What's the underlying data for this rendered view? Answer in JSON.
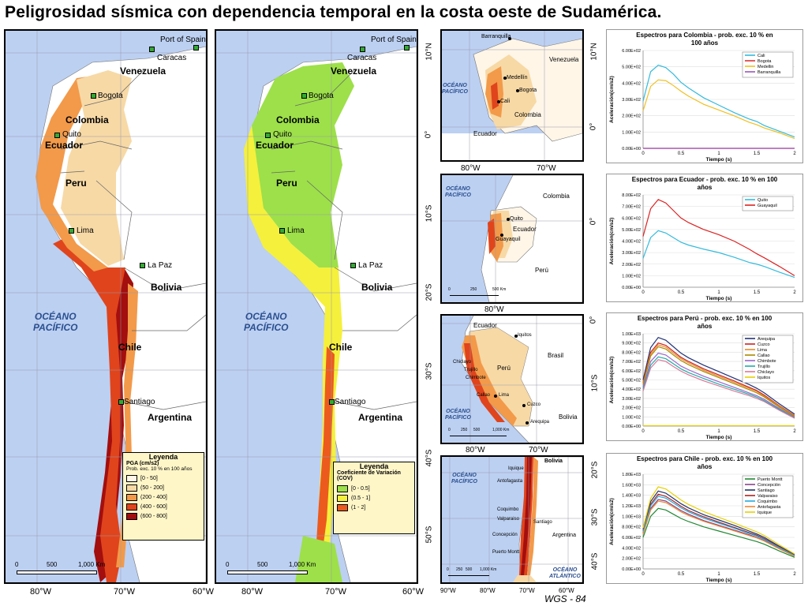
{
  "title": "Peligrosidad sísmica con dependencia temporal en la costa oeste de Sudamérica.",
  "footer": "WGS - 84",
  "map1": {
    "countries": [
      "Venezuela",
      "Colombia",
      "Ecuador",
      "Peru",
      "Bolivia",
      "Chile",
      "Argentina"
    ],
    "cities": [
      "Port of Spain",
      "Caracas",
      "Bogota",
      "Quito",
      "Lima",
      "La Paz",
      "Santiago"
    ],
    "ocean": [
      "OCÉANO",
      "PACÍFICO"
    ],
    "lat_labels": [
      "10°N",
      "0°",
      "10°S",
      "20°S",
      "30°S",
      "40°S",
      "50°S"
    ],
    "lon_labels": [
      "80°W",
      "70°W",
      "60°W"
    ],
    "scale": [
      "0",
      "500",
      "1,000 Km"
    ],
    "legend": {
      "title": "Leyenda",
      "subtitle": "PGA (cm/s2)",
      "note": "Prob. exc. 10 % en 100 años",
      "items": [
        {
          "label": "[0 - 50]",
          "color": "#fff6e8"
        },
        {
          "label": "(50 - 200]",
          "color": "#f7d9a6"
        },
        {
          "label": "(200 - 400]",
          "color": "#f29a4a"
        },
        {
          "label": "(400 - 600]",
          "color": "#e0441c"
        },
        {
          "label": "(600 - 800]",
          "color": "#a30e0e"
        }
      ]
    }
  },
  "map2": {
    "countries": [
      "Venezuela",
      "Colombia",
      "Ecuador",
      "Peru",
      "Bolivia",
      "Chile",
      "Argentina"
    ],
    "cities": [
      "Port of Spain",
      "Caracas",
      "Bogota",
      "Quito",
      "Lima",
      "La Paz",
      "Santiago"
    ],
    "ocean": [
      "OCÉANO",
      "PACÍFICO"
    ],
    "lat_labels": [
      "10°N",
      "0°",
      "10°S",
      "20°S",
      "30°S",
      "40°S",
      "50°S"
    ],
    "lon_labels": [
      "80°W",
      "70°W",
      "60°W"
    ],
    "scale": [
      "0",
      "500",
      "1,000 Km"
    ],
    "legend": {
      "title": "Leyenda",
      "subtitle": "Coeficiente de Variación (COV)",
      "items": [
        {
          "label": "[0 - 0.5]",
          "color": "#9de04a"
        },
        {
          "label": "(0.5 - 1]",
          "color": "#f5f03c"
        },
        {
          "label": "(1 - 2]",
          "color": "#ec5a1e"
        }
      ]
    }
  },
  "insets": [
    {
      "id": "colombia",
      "labels": [
        "Barranquilla",
        "Venezuela",
        "Medellín",
        "Bogota",
        "Cali",
        "Colombia",
        "Ecuador"
      ],
      "ocean": [
        "OCÉANO",
        "PACÍFICO"
      ],
      "lat_labels": [
        "10°N",
        "0°"
      ],
      "lon_labels": [
        "80°W",
        "70°W"
      ],
      "scale": [
        "0",
        "250",
        "500 Km"
      ]
    },
    {
      "id": "ecuador",
      "labels": [
        "Colombia",
        "Quito",
        "Ecuador",
        "Guayaquil",
        "Perú"
      ],
      "ocean": [
        "OCÉANO",
        "PACÍFICO"
      ],
      "lat_labels": [
        "0°"
      ],
      "lon_labels": [
        "80°W"
      ],
      "scale": [
        "0",
        "250",
        "500 Km"
      ]
    },
    {
      "id": "peru",
      "labels": [
        "Ecuador",
        "Iquitos",
        "Brasil",
        "Chiclayo",
        "Trujillo",
        "Chimbote",
        "Perú",
        "Callao",
        "Lima",
        "Cuzco",
        "Arequipa",
        "Bolivia"
      ],
      "ocean": [
        "OCÉANO",
        "PACÍFICO"
      ],
      "lat_labels": [
        "0°",
        "10°S"
      ],
      "lon_labels": [
        "80°W",
        "70°W"
      ],
      "scale": [
        "0",
        "250",
        "500",
        "1,000 Km"
      ]
    },
    {
      "id": "chile",
      "labels": [
        "Bolivia",
        "Iquique",
        "Antofagasta",
        "Coquimbo",
        "Valparaiso",
        "Santiago",
        "Concepción",
        "Puerto Montt",
        "Argentina"
      ],
      "ocean": [
        "OCÉANO",
        "PACÍFICO"
      ],
      "ocean2": [
        "OCÉANO",
        "ATLÁNTICO"
      ],
      "lat_labels": [
        "20°S",
        "30°S",
        "40°S"
      ],
      "lon_labels": [
        "90°W",
        "80°W",
        "70°W",
        "60°W"
      ],
      "scale": [
        "0",
        "250",
        "500",
        "1,000 Km"
      ]
    }
  ],
  "chart_data": [
    {
      "type": "line",
      "title": "Espectros  para Colombia - prob. exc. 10 % en 100 años",
      "xlabel": "Tiempo (s)",
      "ylabel": "Aceleración(cm/s2)",
      "xlim": [
        0,
        2
      ],
      "ylim": [
        0,
        600
      ],
      "xticks": [
        "0",
        "0.5",
        "1",
        "1.5",
        "2"
      ],
      "yticks": [
        "0.00E+00",
        "1.00E+02",
        "2.00E+02",
        "3.00E+02",
        "4.00E+02",
        "5.00E+02",
        "6.00E+02"
      ],
      "legend_position": "top-right",
      "x": [
        0,
        0.1,
        0.2,
        0.3,
        0.4,
        0.5,
        0.6,
        0.8,
        1.0,
        1.2,
        1.4,
        1.5,
        1.6,
        1.8,
        2.0
      ],
      "series": [
        {
          "name": "Cali",
          "color": "#33bbdd",
          "values": [
            290,
            470,
            510,
            495,
            455,
            405,
            370,
            310,
            265,
            220,
            180,
            165,
            140,
            105,
            70
          ]
        },
        {
          "name": "Bogota",
          "color": "#dd3333",
          "values": [
            0,
            0,
            0,
            0,
            0,
            0,
            0,
            0,
            0,
            0,
            0,
            0,
            0,
            0,
            0
          ]
        },
        {
          "name": "Medellin",
          "color": "#f0c020",
          "values": [
            230,
            380,
            420,
            415,
            385,
            350,
            320,
            270,
            235,
            200,
            160,
            145,
            125,
            95,
            60
          ]
        },
        {
          "name": "Barranquilla",
          "color": "#9955bb",
          "values": [
            0,
            0,
            0,
            0,
            0,
            0,
            0,
            0,
            0,
            0,
            0,
            0,
            0,
            0,
            0
          ]
        }
      ]
    },
    {
      "type": "line",
      "title": "Espectros  para Ecuador - prob. exc. 10 % en 100 años",
      "xlabel": "Tiempo (s)",
      "ylabel": "Aceleración(cm/s2)",
      "xlim": [
        0,
        2
      ],
      "ylim": [
        0,
        800
      ],
      "xticks": [
        "0",
        "0.5",
        "1",
        "1.5",
        "2"
      ],
      "yticks": [
        "0.00E+00",
        "1.00E+02",
        "2.00E+02",
        "3.00E+02",
        "4.00E+02",
        "5.00E+02",
        "6.00E+02",
        "7.00E+02",
        "8.00E+02"
      ],
      "legend_position": "top-right",
      "x": [
        0,
        0.1,
        0.2,
        0.3,
        0.4,
        0.5,
        0.6,
        0.8,
        1.0,
        1.2,
        1.4,
        1.5,
        1.6,
        1.8,
        2.0
      ],
      "series": [
        {
          "name": "Quito",
          "color": "#33bbdd",
          "values": [
            250,
            430,
            490,
            470,
            430,
            390,
            365,
            330,
            300,
            260,
            215,
            200,
            180,
            130,
            85
          ]
        },
        {
          "name": "Guayaquil",
          "color": "#dd2222",
          "values": [
            440,
            680,
            760,
            730,
            665,
            600,
            560,
            500,
            455,
            400,
            330,
            290,
            255,
            180,
            100
          ]
        }
      ]
    },
    {
      "type": "line",
      "title": "Espectros  para Perú - prob. exc. 10 % en 100 años",
      "xlabel": "Tiempo (s)",
      "ylabel": "Aceleración(cm/s2)",
      "xlim": [
        0,
        2
      ],
      "ylim": [
        0,
        1000
      ],
      "xticks": [
        "0",
        "0.5",
        "1",
        "1.5",
        "2"
      ],
      "yticks": [
        "0.00E+00",
        "1.00E+02",
        "2.00E+02",
        "3.00E+02",
        "4.00E+02",
        "5.00E+02",
        "6.00E+02",
        "7.00E+02",
        "8.00E+02",
        "9.00E+02",
        "1.00E+03"
      ],
      "legend_position": "top-right",
      "x": [
        0,
        0.1,
        0.2,
        0.3,
        0.4,
        0.5,
        0.6,
        0.8,
        1.0,
        1.2,
        1.4,
        1.5,
        1.6,
        1.8,
        2.0
      ],
      "series": [
        {
          "name": "Arequipa",
          "color": "#223377",
          "values": [
            500,
            850,
            960,
            930,
            860,
            790,
            740,
            660,
            590,
            520,
            450,
            410,
            360,
            240,
            130
          ]
        },
        {
          "name": "Cuzco",
          "color": "#cc2222",
          "values": [
            470,
            800,
            900,
            875,
            810,
            745,
            700,
            620,
            555,
            490,
            420,
            385,
            335,
            220,
            115
          ]
        },
        {
          "name": "Lima",
          "color": "#e88a2a",
          "values": [
            460,
            780,
            880,
            855,
            790,
            730,
            685,
            605,
            540,
            475,
            410,
            375,
            325,
            215,
            110
          ]
        },
        {
          "name": "Callao",
          "color": "#aa8800",
          "values": [
            450,
            760,
            860,
            835,
            770,
            710,
            665,
            590,
            525,
            460,
            395,
            360,
            315,
            205,
            105
          ]
        },
        {
          "name": "Chimbote",
          "color": "#9966cc",
          "values": [
            420,
            700,
            790,
            770,
            710,
            650,
            610,
            540,
            480,
            420,
            360,
            330,
            290,
            190,
            95
          ]
        },
        {
          "name": "Trujillo",
          "color": "#22aaaa",
          "values": [
            400,
            660,
            750,
            730,
            675,
            620,
            580,
            515,
            455,
            400,
            345,
            315,
            275,
            180,
            90
          ]
        },
        {
          "name": "Chiclayo",
          "color": "#dd7799",
          "values": [
            380,
            630,
            720,
            700,
            645,
            595,
            555,
            490,
            435,
            380,
            330,
            300,
            265,
            170,
            85
          ]
        },
        {
          "name": "Iquitos",
          "color": "#e8d000",
          "values": [
            5,
            5,
            5,
            5,
            5,
            5,
            5,
            5,
            5,
            5,
            5,
            5,
            5,
            5,
            5
          ]
        }
      ]
    },
    {
      "type": "line",
      "title": "Espectros  para Chile - prob. exc. 10 % en 100 años",
      "xlabel": "Tiempo (s)",
      "ylabel": "Aceleración(cm/s2)",
      "xlim": [
        0,
        2
      ],
      "ylim": [
        0,
        1800
      ],
      "xticks": [
        "0",
        "0.5",
        "1",
        "1.5",
        "2"
      ],
      "yticks": [
        "0.00E+00",
        "2.00E+02",
        "4.00E+02",
        "6.00E+02",
        "8.00E+02",
        "1.00E+03",
        "1.20E+03",
        "1.40E+03",
        "1.60E+03",
        "1.80E+03"
      ],
      "legend_position": "top-right",
      "x": [
        0,
        0.1,
        0.2,
        0.3,
        0.4,
        0.5,
        0.6,
        0.8,
        1.0,
        1.2,
        1.4,
        1.5,
        1.6,
        1.8,
        2.0
      ],
      "series": [
        {
          "name": "Puerto Montt",
          "color": "#228833",
          "values": [
            600,
            1000,
            1150,
            1120,
            1040,
            960,
            900,
            800,
            720,
            640,
            560,
            520,
            470,
            340,
            220
          ]
        },
        {
          "name": "Concepción",
          "color": "#884488",
          "values": [
            680,
            1150,
            1320,
            1290,
            1200,
            1110,
            1040,
            920,
            830,
            740,
            650,
            600,
            540,
            390,
            250
          ]
        },
        {
          "name": "Santiago",
          "color": "#223366",
          "values": [
            750,
            1280,
            1480,
            1440,
            1340,
            1240,
            1160,
            1030,
            930,
            830,
            720,
            665,
            600,
            430,
            270
          ]
        },
        {
          "name": "Valparaiso",
          "color": "#aa2222",
          "values": [
            720,
            1230,
            1420,
            1380,
            1290,
            1190,
            1110,
            990,
            890,
            790,
            690,
            640,
            575,
            415,
            260
          ]
        },
        {
          "name": "Coquimbo",
          "color": "#22aadd",
          "values": [
            700,
            1200,
            1380,
            1345,
            1255,
            1160,
            1085,
            965,
            870,
            775,
            675,
            625,
            560,
            405,
            255
          ]
        },
        {
          "name": "Antofagasta",
          "color": "#ee8833",
          "values": [
            660,
            1120,
            1290,
            1260,
            1175,
            1085,
            1015,
            905,
            815,
            725,
            635,
            590,
            530,
            380,
            240
          ]
        },
        {
          "name": "Iquique",
          "color": "#e8d000",
          "values": [
            780,
            1340,
            1560,
            1520,
            1415,
            1310,
            1225,
            1090,
            980,
            875,
            760,
            705,
            635,
            455,
            285
          ]
        }
      ]
    }
  ]
}
